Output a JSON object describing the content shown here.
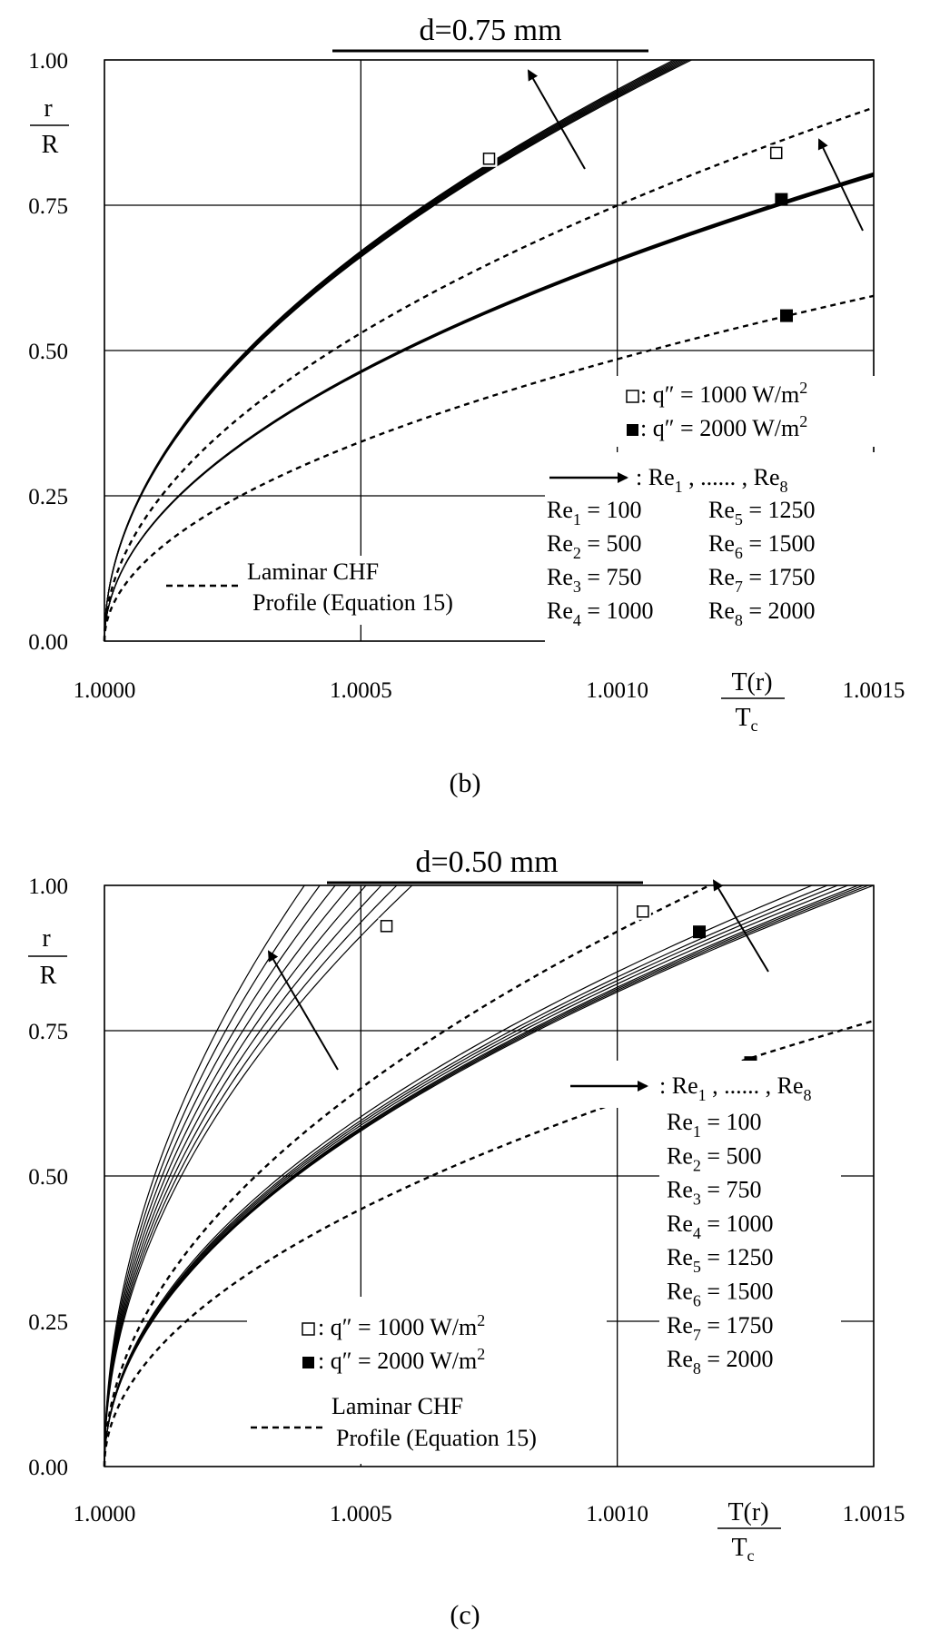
{
  "chart_data": [
    {
      "type": "line",
      "panel": "b",
      "caption": "(b)",
      "title": "d=0.75 mm",
      "xlabel": {
        "num": "T(r)",
        "den": "T",
        "den_sub": "c"
      },
      "ylabel": {
        "num": "r",
        "den": "R"
      },
      "xlim": [
        1.0,
        1.0015
      ],
      "ylim": [
        0.0,
        1.0
      ],
      "x_ticks": [
        "1.0000",
        "1.0005",
        "1.0010",
        "1.0015"
      ],
      "y_ticks": [
        "0.00",
        "0.25",
        "0.50",
        "0.75",
        "1.00"
      ],
      "grid": true,
      "legend": {
        "q1000": {
          "label": ": q″ = 1000 W/m",
          "sup": "2"
        },
        "q2000": {
          "label": ": q″ = 2000 W/m",
          "sup": "2"
        },
        "arrow": {
          "pre": ": Re",
          "s1": "1",
          "mid": " , ...... , Re",
          "s2": "8"
        },
        "laminar": {
          "line1": "Laminar CHF",
          "line2": "Profile (Equation 15)"
        },
        "re_list": [
          {
            "base": "Re",
            "sub": "1",
            "val": " = 100"
          },
          {
            "base": "Re",
            "sub": "2",
            "val": " = 500"
          },
          {
            "base": "Re",
            "sub": "3",
            "val": " = 750"
          },
          {
            "base": "Re",
            "sub": "4",
            "val": " = 1000"
          },
          {
            "base": "Re",
            "sub": "5",
            "val": " = 1250"
          },
          {
            "base": "Re",
            "sub": "6",
            "val": " = 1500"
          },
          {
            "base": "Re",
            "sub": "7",
            "val": " = 1750"
          },
          {
            "base": "Re",
            "sub": "8",
            "val": " = 2000"
          }
        ]
      },
      "bundles": [
        {
          "name": "q=1000 W/m2, Re1..Re8",
          "marker": "open",
          "x_at_r1": [
            1.00111,
            1.001115,
            1.00112,
            1.001125,
            1.00113,
            1.001135,
            1.00114,
            1.001145
          ],
          "exponent": 0.5
        },
        {
          "name": "q=2000 W/m2, Re1..Re8",
          "marker": "filled",
          "x_at_r1": [
            1.00231,
            1.002315,
            1.00232,
            1.002325,
            1.00233,
            1.002335,
            1.00234,
            1.002345
          ],
          "exponent": 0.5
        }
      ],
      "laminar_profiles": [
        {
          "name": "Laminar CHF q=1000",
          "marker": "open",
          "x_at_r1": 1.00178,
          "exponent": 0.5
        },
        {
          "name": "Laminar CHF q=2000",
          "marker": "filled",
          "x_at_r1": 1.00425,
          "exponent": 0.5
        }
      ],
      "markers": [
        {
          "type": "open",
          "x": 1.00075,
          "y": 0.83
        },
        {
          "type": "open",
          "x": 1.00131,
          "y": 0.84
        },
        {
          "type": "filled",
          "x": 1.00132,
          "y": 0.76
        },
        {
          "type": "filled",
          "x": 1.00133,
          "y": 0.56
        }
      ]
    },
    {
      "type": "line",
      "panel": "c",
      "caption": "(c)",
      "title": "d=0.50 mm",
      "xlabel": {
        "num": "T(r)",
        "den": "T",
        "den_sub": "c"
      },
      "ylabel": {
        "num": "r",
        "den": "R"
      },
      "xlim": [
        1.0,
        1.0015
      ],
      "ylim": [
        0.0,
        1.0
      ],
      "x_ticks": [
        "1.0000",
        "1.0005",
        "1.0010",
        "1.0015"
      ],
      "y_ticks": [
        "0.00",
        "0.25",
        "0.50",
        "0.75",
        "1.00"
      ],
      "grid": true,
      "legend": {
        "q1000": {
          "label": ": q″ = 1000 W/m",
          "sup": "2"
        },
        "q2000": {
          "label": ": q″ = 2000 W/m",
          "sup": "2"
        },
        "arrow": {
          "pre": ": Re",
          "s1": "1",
          "mid": " , ...... , Re",
          "s2": "8"
        },
        "laminar": {
          "line1": "Laminar CHF",
          "line2": "Profile (Equation 15)"
        },
        "re_list": [
          {
            "base": "Re",
            "sub": "1",
            "val": " = 100"
          },
          {
            "base": "Re",
            "sub": "2",
            "val": " = 500"
          },
          {
            "base": "Re",
            "sub": "3",
            "val": " = 750"
          },
          {
            "base": "Re",
            "sub": "4",
            "val": " = 1000"
          },
          {
            "base": "Re",
            "sub": "5",
            "val": " = 1250"
          },
          {
            "base": "Re",
            "sub": "6",
            "val": " = 1500"
          },
          {
            "base": "Re",
            "sub": "7",
            "val": " = 1750"
          },
          {
            "base": "Re",
            "sub": "8",
            "val": " = 2000"
          }
        ]
      },
      "bundles": [
        {
          "name": "q=1000 W/m2, Re1..Re8",
          "marker": "open",
          "x_at_r1": [
            1.00039,
            1.00042,
            1.00045,
            1.00048,
            1.00051,
            1.00054,
            1.00057,
            1.0006
          ],
          "exponent": 0.5
        },
        {
          "name": "q=2000 W/m2, Re1..Re8",
          "marker": "filled",
          "x_at_r1": [
            1.00138,
            1.00141,
            1.00143,
            1.00145,
            1.00147,
            1.00148,
            1.00149,
            1.0015
          ],
          "exponent": 0.5
        }
      ],
      "laminar_profiles": [
        {
          "name": "Laminar CHF q=1000",
          "marker": "open",
          "x_at_r1": 1.00118,
          "exponent": 0.5
        },
        {
          "name": "Laminar CHF q=2000",
          "marker": "filled",
          "x_at_r1": 1.00255,
          "exponent": 0.5
        }
      ],
      "markers": [
        {
          "type": "open",
          "x": 1.00055,
          "y": 0.93
        },
        {
          "type": "open",
          "x": 1.00105,
          "y": 0.955
        },
        {
          "type": "filled",
          "x": 1.00116,
          "y": 0.92
        },
        {
          "type": "filled",
          "x": 1.00126,
          "y": 0.695
        }
      ]
    }
  ]
}
